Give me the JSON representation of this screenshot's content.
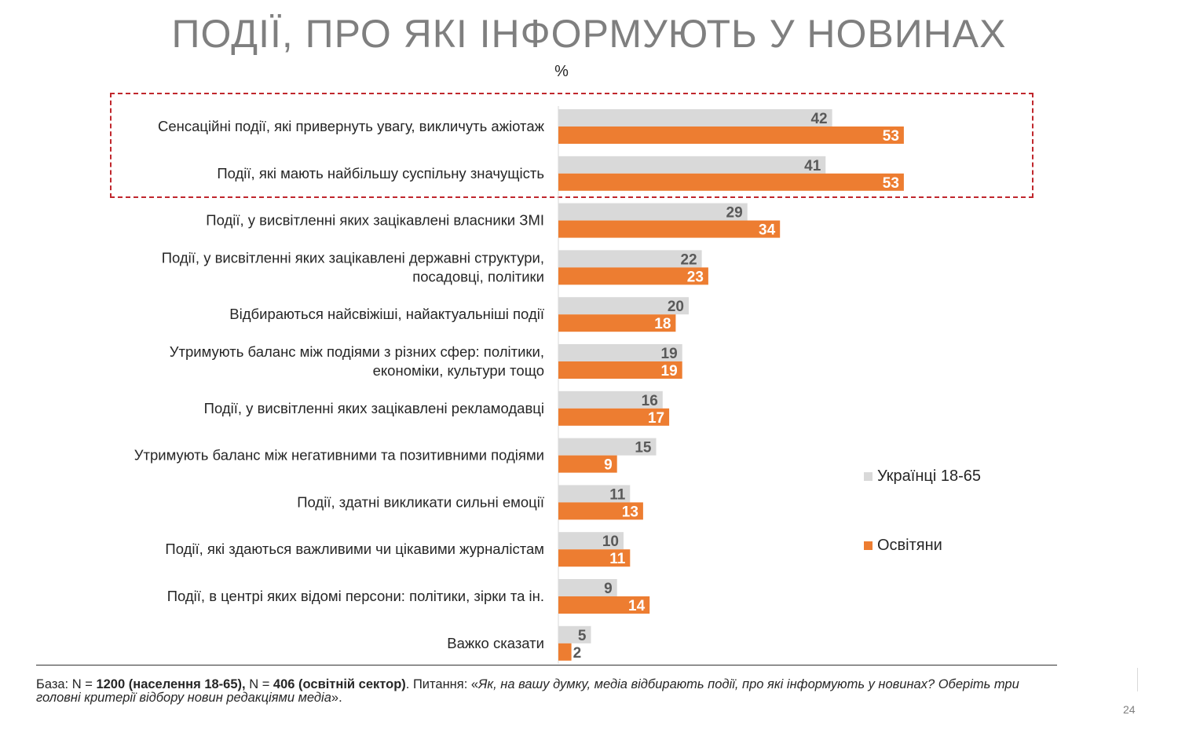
{
  "slide": {
    "title": "ПОДІЇ, ПРО ЯКІ ІНФОРМУЮТЬ У НОВИНАХ",
    "unit": "%",
    "page_number": "24"
  },
  "legend": {
    "series1": "Українці 18-65",
    "series2": "Освітяни"
  },
  "footer": {
    "base_prefix": "База: N = ",
    "base_n1": "1200 (населення 18-65),",
    "base_mid": " N = ",
    "base_n2": "406 (освітній сектор)",
    "question_prefix": ". Питання: «",
    "question_text": "Як, на вашу думку, медіа відбирають події, про які інформують у новинах? Оберіть три головні критерії відбору новин редакціями медіа",
    "question_suffix": "»."
  },
  "colors": {
    "series1": "#d9d9d9",
    "series2": "#ed7d31",
    "highlight": "#c0272d",
    "title": "#7f7f7f"
  },
  "chart_data": {
    "type": "bar",
    "orientation": "horizontal",
    "categories": [
      [
        "Сенсаційні події, які привернуть увагу, викличуть ажіотаж"
      ],
      [
        "Події, які мають найбільшу суспільну значущість"
      ],
      [
        "Події, у висвітленні яких зацікавлені  власники ЗМІ"
      ],
      [
        "Події, у висвітленні яких зацікавлені державні структури,",
        "посадовці, політики"
      ],
      [
        "Відбираються найсвіжіші, найактуальніші події"
      ],
      [
        "Утримують баланс між подіями з різних сфер: політики,",
        "економіки, культури тощо"
      ],
      [
        "Події, у висвітленні яких зацікавлені рекламодавці"
      ],
      [
        "Утримують баланс між негативними та позитивними подіями"
      ],
      [
        "Події, здатні викликати сильні емоції"
      ],
      [
        "Події, які здаються важливими чи цікавими журналістам"
      ],
      [
        "Події, в центрі яких відомі персони: політики, зірки та ін."
      ],
      [
        "Важко сказати"
      ]
    ],
    "series": [
      {
        "name": "Українці 18-65",
        "values": [
          42,
          41,
          29,
          22,
          20,
          19,
          16,
          15,
          11,
          10,
          9,
          5
        ]
      },
      {
        "name": "Освітяни",
        "values": [
          53,
          53,
          34,
          23,
          18,
          19,
          17,
          9,
          13,
          11,
          14,
          2
        ]
      }
    ],
    "legend": "right",
    "grid": false,
    "highlighted_categories": [
      0,
      1
    ]
  }
}
